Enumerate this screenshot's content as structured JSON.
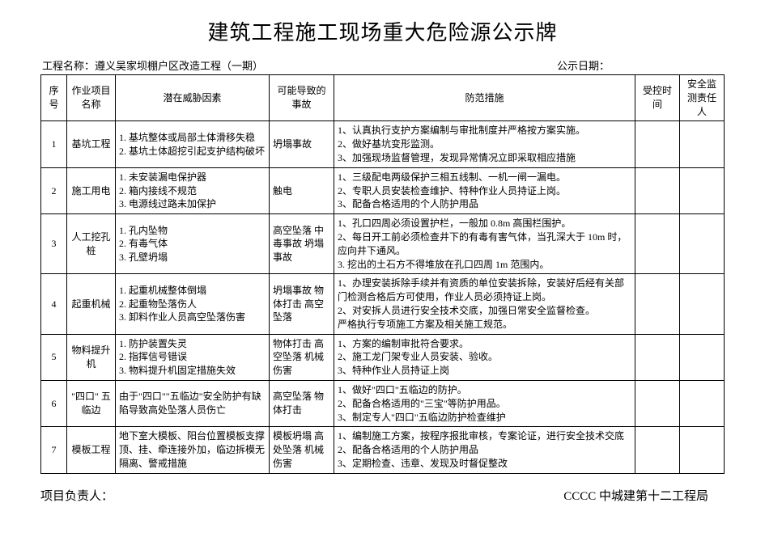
{
  "title": "建筑工程施工现场重大危险源公示牌",
  "meta": {
    "project_label": "工程名称：",
    "project_name": "遵义吴家坝棚户区改造工程（一期）",
    "date_label": "公示日期："
  },
  "headers": {
    "idx": "序号",
    "name": "作业项目名称",
    "risk": "潜在威胁因素",
    "acc": "可能导致的事故",
    "ctrl": "防范措施",
    "time": "受控时间",
    "person": "安全监测责任人"
  },
  "rows": [
    {
      "idx": "1",
      "name": "基坑工程",
      "risk": "1. 基坑整体或局部土体滑移失稳\n2. 基坑土体超挖引起支护结构破坏",
      "acc": "坍塌事故",
      "ctrl": "1、认真执行支护方案编制与审批制度并严格按方案实施。\n2、做好基坑变形监测。\n3、加强现场监督管理，发现异常情况立即采取相应措施"
    },
    {
      "idx": "2",
      "name": "施工用电",
      "risk": "1. 未安装漏电保护器\n2. 箱内接线不规范\n3. 电源线过路未加保护",
      "acc": "触电",
      "ctrl": "1、三级配电两级保护三相五线制、一机一闸一漏电。\n2、专职人员安装检查维护、特种作业人员持证上岗。\n3、配备合格适用的个人防护用品"
    },
    {
      "idx": "3",
      "name": "人工挖孔桩",
      "risk": "1. 孔内坠物\n2. 有毒气体\n3. 孔壁坍塌",
      "acc": "高空坠落 中毒事故 坍塌事故",
      "ctrl": "1、孔口四周必须设置护栏，一般加 0.8m 高围栏围护。\n2、每日开工前必须检查井下的有毒有害气体，当孔深大于 10m 时，应向井下通风。\n3. 挖出的土石方不得堆放在孔口四周 1m 范围内。"
    },
    {
      "idx": "4",
      "name": "起重机械",
      "risk": "1. 起重机械整体倒塌\n2. 起重物坠落伤人\n3. 卸料作业人员高空坠落伤害",
      "acc": "坍塌事故 物体打击 高空坠落",
      "ctrl": "1、办理安装拆除手续并有资质的单位安装拆除，安装好后经有关部门检测合格后方可使用，作业人员必须持证上岗。\n2、对安拆人员进行安全技术交底，加强日常安全监督检查。\n严格执行专项施工方案及相关施工规范。"
    },
    {
      "idx": "5",
      "name": "物料提升机",
      "risk": "1. 防护装置失灵\n2. 指挥信号错误\n3. 物料提升机固定措施失效",
      "acc": "物体打击 高空坠落 机械伤害",
      "ctrl": "1、方案的编制审批符合要求。\n2、施工龙门架专业人员安装、验收。\n3、特种作业人员持证上岗"
    },
    {
      "idx": "6",
      "name": "\"四口\" 五临边",
      "risk": "由于\"四口\"\"五临边\"安全防护有缺陷导致高处坠落人员伤亡",
      "acc": "高空坠落 物体打击",
      "ctrl": "1、做好\"四口\"五临边的防护。\n2、配备合格适用的\"三宝\"等防护用品。\n3、制定专人\"四口\"五临边防护检查维护"
    },
    {
      "idx": "7",
      "name": "模板工程",
      "risk": "地下室大模板、阳台位置模板支撑顶、挂、牵连接外加，临边拆模无隔离、警戒措施",
      "acc": "模板坍塌 高处坠落 机械伤害",
      "ctrl": "1、编制施工方案，按程序报批审核，专案论证，进行安全技术交底\n2、配备合格适用的个人防护用品\n3、定期检查、违章、发现及时督促整改"
    }
  ],
  "footer": {
    "left": "项目负责人：",
    "right": "CCCC 中城建第十二工程局"
  },
  "style": {
    "background": "#ffffff",
    "text_color": "#000000",
    "border_color": "#000000",
    "title_fontsize": 26,
    "body_fontsize": 12,
    "footer_fontsize": 15
  }
}
